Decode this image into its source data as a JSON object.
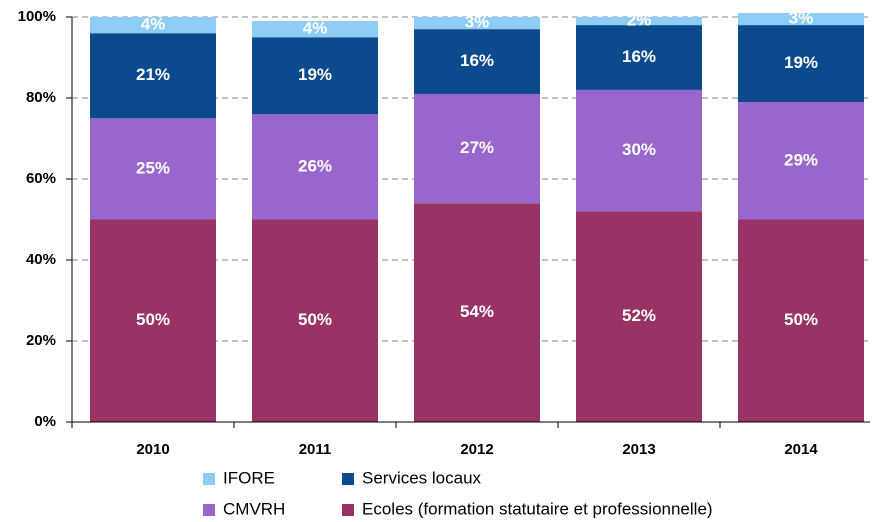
{
  "chart_data": {
    "type": "stacked_bar",
    "categories": [
      "2010",
      "2011",
      "2012",
      "2013",
      "2014"
    ],
    "series": [
      {
        "name": "Ecoles (formation statutaire et professionnelle)",
        "color": "#993366",
        "values": [
          50,
          50,
          54,
          52,
          50
        ],
        "value_labels": [
          "50%",
          "50%",
          "54%",
          "52%",
          "50%"
        ]
      },
      {
        "name": "CMVRH",
        "color": "#9966cc",
        "values": [
          25,
          26,
          27,
          30,
          29
        ],
        "value_labels": [
          "25%",
          "26%",
          "27%",
          "30%",
          "29%"
        ]
      },
      {
        "name": "Services locaux",
        "color": "#0b4a8c",
        "values": [
          21,
          19,
          16,
          16,
          19
        ],
        "value_labels": [
          "21%",
          "19%",
          "16%",
          "16%",
          "19%"
        ]
      },
      {
        "name": "IFORE",
        "color": "#8ecdf5",
        "values": [
          4,
          4,
          3,
          2,
          3
        ],
        "value_labels": [
          "4%",
          "4%",
          "3%",
          "2%",
          "3%"
        ]
      }
    ],
    "ylim": [
      0,
      100
    ],
    "yticks": [
      {
        "value": 0,
        "label": "0%"
      },
      {
        "value": 20,
        "label": "20%"
      },
      {
        "value": 40,
        "label": "40%"
      },
      {
        "value": 60,
        "label": "60%"
      },
      {
        "value": 80,
        "label": "80%"
      },
      {
        "value": 100,
        "label": "100%"
      }
    ],
    "grid": true
  }
}
